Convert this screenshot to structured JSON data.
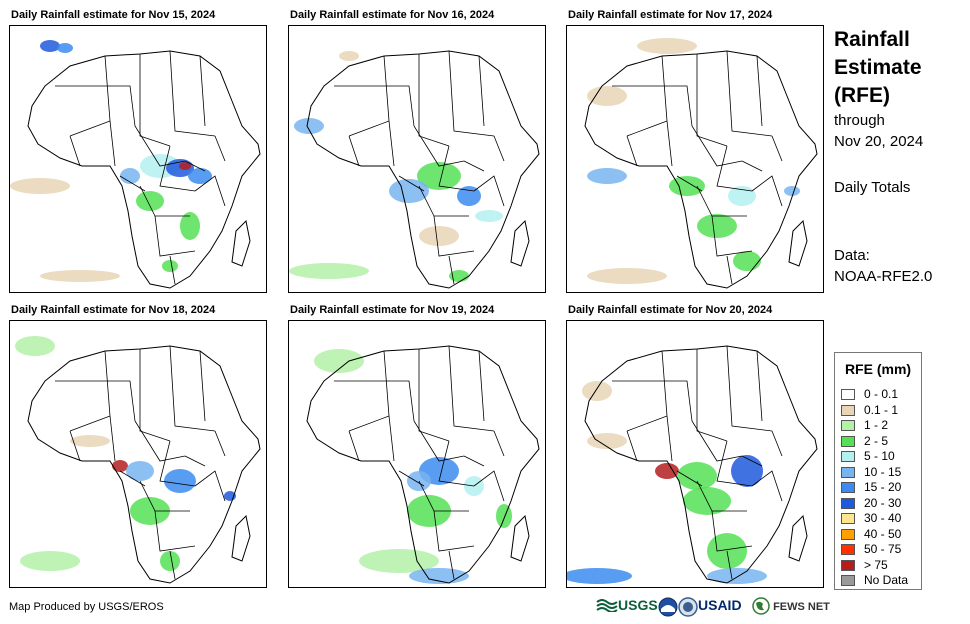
{
  "panels": [
    {
      "title": "Daily Rainfall estimate for Nov 15, 2024"
    },
    {
      "title": "Daily Rainfall estimate for Nov 16, 2024"
    },
    {
      "title": "Daily Rainfall estimate for Nov 17, 2024"
    },
    {
      "title": "Daily Rainfall estimate for Nov 18, 2024"
    },
    {
      "title": "Daily Rainfall estimate for Nov 19, 2024"
    },
    {
      "title": "Daily Rainfall estimate for Nov 20, 2024"
    }
  ],
  "side": {
    "title_line1": "Rainfall",
    "title_line2": "Estimate",
    "title_line3": "(RFE)",
    "through": "through",
    "date": "Nov 20, 2024",
    "totals": "Daily Totals",
    "data_label": "Data:",
    "data_source": "NOAA-RFE2.0"
  },
  "legend": {
    "title": "RFE (mm)",
    "items": [
      {
        "label": "0 - 0.1",
        "color": "#ffffff"
      },
      {
        "label": "0.1 - 1",
        "color": "#e8d5b5"
      },
      {
        "label": "1 - 2",
        "color": "#b4f0a8"
      },
      {
        "label": "2 - 5",
        "color": "#55e055"
      },
      {
        "label": "5 - 10",
        "color": "#b4f0f0"
      },
      {
        "label": "10 - 15",
        "color": "#78b4f0"
      },
      {
        "label": "15 - 20",
        "color": "#3c8cf0"
      },
      {
        "label": "20 - 30",
        "color": "#1e5adc"
      },
      {
        "label": "30 - 40",
        "color": "#ffe68c"
      },
      {
        "label": "40 - 50",
        "color": "#ffa000"
      },
      {
        "label": "50 - 75",
        "color": "#ff3200"
      },
      {
        "label": "> 75",
        "color": "#b41e1e"
      },
      {
        "label": "No Data",
        "color": "#999999"
      }
    ]
  },
  "footer": {
    "credit": "Map Produced by USGS/EROS",
    "logo_usgs": "USGS",
    "logo_usaid": "USAID",
    "logo_fews": "FEWS NET"
  }
}
